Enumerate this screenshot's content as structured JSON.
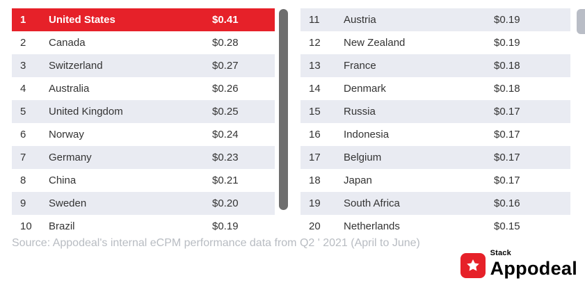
{
  "left_table": {
    "rows": [
      {
        "rank": "1",
        "country": "United States",
        "value": "$0.41",
        "highlight": true
      },
      {
        "rank": "2",
        "country": "Canada",
        "value": "$0.28"
      },
      {
        "rank": "3",
        "country": "Switzerland",
        "value": "$0.27"
      },
      {
        "rank": "4",
        "country": "Australia",
        "value": "$0.26"
      },
      {
        "rank": "5",
        "country": "United Kingdom",
        "value": "$0.25"
      },
      {
        "rank": "6",
        "country": "Norway",
        "value": "$0.24"
      },
      {
        "rank": "7",
        "country": "Germany",
        "value": "$0.23"
      },
      {
        "rank": "8",
        "country": "China",
        "value": "$0.21"
      },
      {
        "rank": "9",
        "country": "Sweden",
        "value": "$0.20"
      },
      {
        "rank": "10",
        "country": "Brazil",
        "value": "$0.19"
      }
    ]
  },
  "right_table": {
    "rows": [
      {
        "rank": "11",
        "country": "Austria",
        "value": "$0.19"
      },
      {
        "rank": "12",
        "country": "New Zealand",
        "value": "$0.19"
      },
      {
        "rank": "13",
        "country": "France",
        "value": "$0.18"
      },
      {
        "rank": "14",
        "country": "Denmark",
        "value": "$0.18"
      },
      {
        "rank": "15",
        "country": "Russia",
        "value": "$0.17"
      },
      {
        "rank": "16",
        "country": "Indonesia",
        "value": "$0.17"
      },
      {
        "rank": "17",
        "country": "Belgium",
        "value": "$0.17"
      },
      {
        "rank": "18",
        "country": "Japan",
        "value": "$0.17"
      },
      {
        "rank": "19",
        "country": "South Africa",
        "value": "$0.16"
      },
      {
        "rank": "20",
        "country": "Netherlands",
        "value": "$0.15"
      }
    ]
  },
  "source_text": "Source: Appodeal's internal eCPM performance data from Q2 ' 2021 (April to June)",
  "logo": {
    "stack_label": "Stack",
    "brand_label": "Appodeal",
    "star_icon": "star"
  },
  "colors": {
    "highlight_red": "#e62129",
    "row_shade": "#e9ebf2",
    "source_gray": "#b8bcc2",
    "scrollbar_gray": "#6e6e6e",
    "scrollbar_light": "#b9bdc6"
  },
  "chart_data": {
    "type": "table",
    "columns": [
      "rank",
      "country",
      "ecpm_usd"
    ],
    "rows": [
      [
        1,
        "United States",
        0.41
      ],
      [
        2,
        "Canada",
        0.28
      ],
      [
        3,
        "Switzerland",
        0.27
      ],
      [
        4,
        "Australia",
        0.26
      ],
      [
        5,
        "United Kingdom",
        0.25
      ],
      [
        6,
        "Norway",
        0.24
      ],
      [
        7,
        "Germany",
        0.23
      ],
      [
        8,
        "China",
        0.21
      ],
      [
        9,
        "Sweden",
        0.2
      ],
      [
        10,
        "Brazil",
        0.19
      ],
      [
        11,
        "Austria",
        0.19
      ],
      [
        12,
        "New Zealand",
        0.19
      ],
      [
        13,
        "France",
        0.18
      ],
      [
        14,
        "Denmark",
        0.18
      ],
      [
        15,
        "Russia",
        0.17
      ],
      [
        16,
        "Indonesia",
        0.17
      ],
      [
        17,
        "Belgium",
        0.17
      ],
      [
        18,
        "Japan",
        0.17
      ],
      [
        19,
        "South Africa",
        0.16
      ],
      [
        20,
        "Netherlands",
        0.15
      ]
    ],
    "highlighted_row_rank": 1,
    "note": "Source: Appodeal's internal eCPM performance data from Q2 ' 2021 (April to June)"
  }
}
